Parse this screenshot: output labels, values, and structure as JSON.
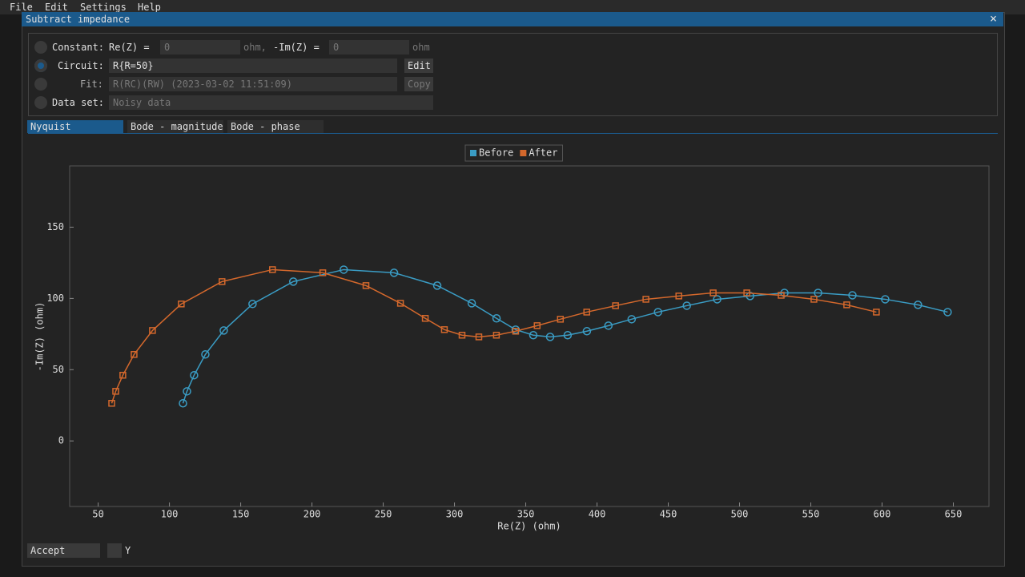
{
  "ui": {
    "menu": [
      "File",
      "Edit",
      "Settings",
      "Help"
    ],
    "dialog": {
      "title": "Subtract impedance",
      "close": "×"
    },
    "options": {
      "constant_label": "Constant:",
      "re_label": "Re(Z) =",
      "re_value": "0",
      "re_unit": "ohm,",
      "im_label": "-Im(Z) =",
      "im_value": "0",
      "im_unit": "ohm",
      "circuit_label": "Circuit:",
      "circuit_value": "R{R=50}",
      "edit": "Edit",
      "fit_label": "Fit:",
      "fit_value": "R(RC)(RW) (2023-03-02 11:51:09)",
      "copy": "Copy",
      "dataset_label": "Data set:",
      "dataset_value": "Noisy data"
    },
    "tabs": [
      "Nyquist",
      "Bode - magnitude",
      "Bode - phase"
    ],
    "footer": {
      "accept": "Accept",
      "checkbox": "Y"
    }
  },
  "chart_data": {
    "type": "line",
    "x_label": "Re(Z) (ohm)",
    "y_label": "-Im(Z) (ohm)",
    "xlim": [
      30,
      675
    ],
    "ylim": [
      -46,
      193
    ],
    "xticks": [
      50,
      100,
      150,
      200,
      250,
      300,
      350,
      400,
      450,
      500,
      550,
      600,
      650
    ],
    "yticks": [
      0,
      50,
      100,
      150
    ],
    "legend": "top",
    "series": [
      {
        "name": "Before",
        "color": "#3a9cc4",
        "marker": "circle",
        "x": [
          109.5,
          112.3,
          117.3,
          125.2,
          138.1,
          158.3,
          186.9,
          222.3,
          257.6,
          287.9,
          312.1,
          329.5,
          342.9,
          355.3,
          367.1,
          379.4,
          392.9,
          408.0,
          424.3,
          442.8,
          463.0,
          484.3,
          507.4,
          531.5,
          555.1,
          579.2,
          602.2,
          625.2,
          646.0
        ],
        "values": [
          26.4,
          34.8,
          46.1,
          60.7,
          77.5,
          96.1,
          111.8,
          120.2,
          118.0,
          109.0,
          96.6,
          86.0,
          78.1,
          74.2,
          73.0,
          74.2,
          77.0,
          80.9,
          85.4,
          90.4,
          94.9,
          99.4,
          101.7,
          103.9,
          103.9,
          102.2,
          99.4,
          95.5,
          90.4
        ]
      },
      {
        "name": "After",
        "color": "#d4682c",
        "marker": "square",
        "x": [
          59.5,
          62.3,
          67.3,
          75.2,
          88.1,
          108.3,
          136.9,
          172.3,
          207.6,
          237.9,
          262.1,
          279.5,
          292.9,
          305.3,
          317.1,
          329.4,
          342.9,
          358.0,
          374.3,
          392.8,
          413.0,
          434.3,
          457.4,
          481.5,
          505.1,
          529.2,
          552.2,
          575.2,
          596.0
        ],
        "values": [
          26.4,
          34.8,
          46.1,
          60.7,
          77.5,
          96.1,
          111.8,
          120.2,
          118.0,
          109.0,
          96.6,
          86.0,
          78.1,
          74.2,
          73.0,
          74.2,
          77.0,
          80.9,
          85.4,
          90.4,
          94.9,
          99.4,
          101.7,
          103.9,
          103.9,
          102.2,
          99.4,
          95.5,
          90.4
        ]
      }
    ]
  }
}
